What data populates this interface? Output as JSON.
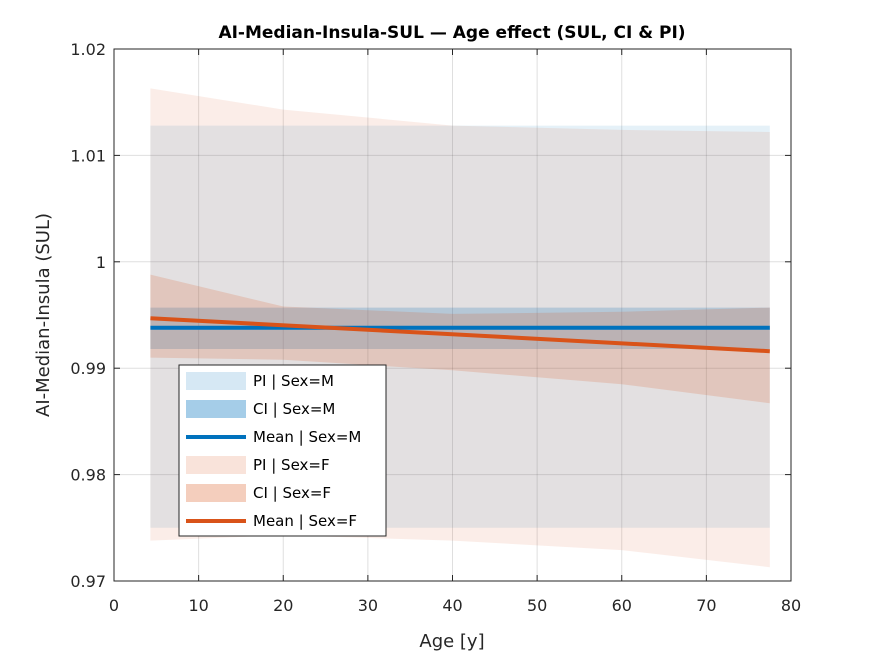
{
  "chart_data": {
    "type": "area",
    "title": "AI-Median-Insula-SUL — Age effect (SUL, CI & PI)",
    "xlabel": "Age [y]",
    "ylabel": "AI-Median-Insula (SUL)",
    "xlim": [
      0,
      80
    ],
    "ylim": [
      0.97,
      1.02
    ],
    "xticks": [
      0,
      10,
      20,
      30,
      40,
      50,
      60,
      70,
      80
    ],
    "yticks": [
      0.97,
      0.98,
      0.99,
      1.0,
      1.01,
      1.02
    ],
    "xtick_labels": [
      "0",
      "10",
      "20",
      "30",
      "40",
      "50",
      "60",
      "70",
      "80"
    ],
    "ytick_labels": [
      "0.97",
      "0.98",
      "0.99",
      "1",
      "1.01",
      "1.02"
    ],
    "grid": true,
    "legend_position": "bottom-left",
    "series": [
      {
        "name": "PI | Sex=M",
        "kind": "band",
        "color": "#0072bd",
        "opacity": 0.1,
        "x": [
          4.3,
          20,
          40,
          60,
          77.5
        ],
        "lower": [
          0.975,
          0.975,
          0.975,
          0.975,
          0.975
        ],
        "upper": [
          1.0128,
          1.0128,
          1.0128,
          1.0128,
          1.0128
        ]
      },
      {
        "name": "CI | Sex=M",
        "kind": "band",
        "color": "#0072bd",
        "opacity": 0.22,
        "x": [
          4.3,
          20,
          40,
          60,
          77.5
        ],
        "lower": [
          0.9918,
          0.9918,
          0.9918,
          0.9918,
          0.9918
        ],
        "upper": [
          0.9957,
          0.9957,
          0.9957,
          0.9957,
          0.9957
        ]
      },
      {
        "name": "Mean | Sex=M",
        "kind": "line",
        "color": "#0072bd",
        "x": [
          4.3,
          77.5
        ],
        "y": [
          0.9938,
          0.9938
        ]
      },
      {
        "name": "PI | Sex=F",
        "kind": "band",
        "color": "#d95319",
        "opacity": 0.1,
        "x": [
          4.3,
          20,
          40,
          60,
          77.5
        ],
        "lower": [
          0.9738,
          0.9743,
          0.9738,
          0.9729,
          0.9713
        ],
        "upper": [
          1.0163,
          1.0143,
          1.0128,
          1.0124,
          1.0122
        ]
      },
      {
        "name": "CI | Sex=F",
        "kind": "band",
        "color": "#d95319",
        "opacity": 0.18,
        "x": [
          4.3,
          20,
          40,
          60,
          77.5
        ],
        "lower": [
          0.991,
          0.9908,
          0.9898,
          0.9885,
          0.9867
        ],
        "upper": [
          0.9988,
          0.9958,
          0.9951,
          0.9953,
          0.9957
        ]
      },
      {
        "name": "Mean | Sex=F",
        "kind": "line",
        "color": "#d95319",
        "x": [
          4.3,
          77.5
        ],
        "y": [
          0.9947,
          0.9916
        ]
      }
    ]
  }
}
